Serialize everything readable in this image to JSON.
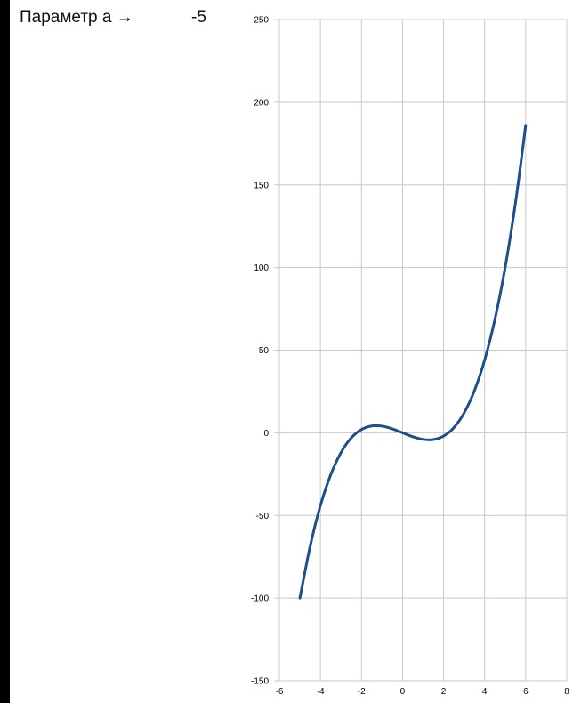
{
  "parameter": {
    "label": "Параметр a →",
    "value": "-5"
  },
  "chart_data": {
    "type": "line",
    "title": "",
    "xlabel": "",
    "ylabel": "",
    "xlim": [
      -6,
      8
    ],
    "ylim": [
      -150,
      250
    ],
    "x_ticks": [
      -6,
      -4,
      -2,
      0,
      2,
      4,
      6,
      8
    ],
    "y_ticks": [
      -150,
      -100,
      -50,
      0,
      50,
      100,
      150,
      200,
      250
    ],
    "grid": true,
    "legend": "none",
    "series": [
      {
        "color": "#1f4e8c",
        "x": [
          -5,
          -4.5,
          -4,
          -3.5,
          -3,
          -2.5,
          -2,
          -1.5,
          -1,
          -0.5,
          0,
          0.5,
          1,
          1.5,
          2,
          2.5,
          3,
          3.5,
          4,
          4.5,
          5,
          5.5,
          6
        ],
        "y": [
          -100,
          -68.6,
          -44,
          -25.4,
          -12,
          -3.1,
          2,
          4.1,
          4,
          2.4,
          0,
          -2.4,
          -4,
          -4.1,
          -2,
          3.1,
          12,
          25.4,
          44,
          68.6,
          100,
          138.9,
          186
        ]
      }
    ]
  }
}
